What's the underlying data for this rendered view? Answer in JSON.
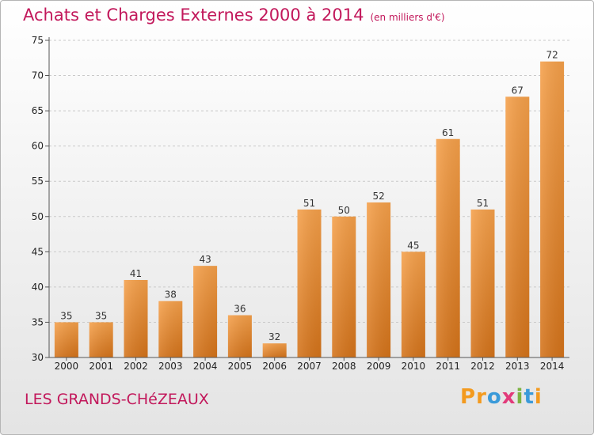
{
  "title": "Achats et Charges Externes 2000 à 2014",
  "subtitle": "(en milliers d'€)",
  "commune": "LES GRANDS-CHéZEAUX",
  "logo": {
    "letters": [
      "P",
      "r",
      "o",
      "x",
      "i",
      "t",
      "i"
    ],
    "colors": [
      "#f39a1e",
      "#f39a1e",
      "#3a9ad9",
      "#e23a7a",
      "#7cb342",
      "#3a9ad9",
      "#f39a1e"
    ]
  },
  "colors": {
    "bar_top": "#f5a04a",
    "bar_bottom": "#d4731a",
    "title": "#c2185b"
  },
  "chart_data": {
    "type": "bar",
    "categories": [
      "2000",
      "2001",
      "2002",
      "2003",
      "2004",
      "2005",
      "2006",
      "2007",
      "2008",
      "2009",
      "2010",
      "2011",
      "2012",
      "2013",
      "2014"
    ],
    "values": [
      35,
      35,
      41,
      38,
      43,
      36,
      32,
      51,
      50,
      52,
      45,
      61,
      51,
      67,
      72
    ],
    "ylim": [
      30,
      75
    ],
    "yticks": [
      30,
      35,
      40,
      45,
      50,
      55,
      60,
      65,
      70,
      75
    ],
    "grid": true
  }
}
